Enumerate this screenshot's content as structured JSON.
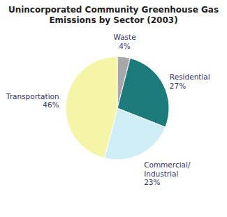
{
  "chart_data": {
    "type": "pie",
    "title": "Unincorporated Community Greenhouse Gas\nEmissions by Sector (2003)",
    "categories": [
      "Waste",
      "Residential",
      "Commercial/\nIndustrial",
      "Transportation"
    ],
    "values": [
      4,
      27,
      23,
      46
    ],
    "value_labels": [
      "4%",
      "27%",
      "23%",
      "46%"
    ],
    "data_labels": true,
    "colors": [
      "#a8a8a8",
      "#1e7b7b",
      "#d0eef5",
      "#f5f5a8"
    ]
  }
}
